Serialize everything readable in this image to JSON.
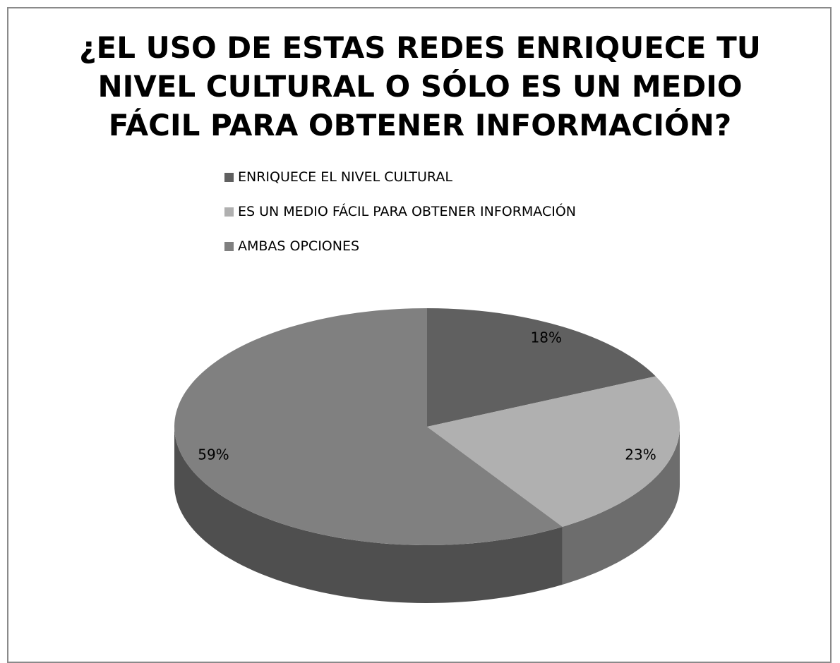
{
  "chart_data": {
    "type": "pie",
    "title": "¿EL USO DE ESTAS REDES ENRIQUECE TU NIVEL CULTURAL O SÓLO ES UN MEDIO FÁCIL PARA OBTENER INFORMACIÓN?",
    "categories": [
      "ENRIQUECE EL NIVEL CULTURAL",
      "ES UN MEDIO FÁCIL PARA OBTENER INFORMACIÓN",
      "AMBAS OPCIONES"
    ],
    "values": [
      18,
      23,
      59
    ],
    "value_labels": [
      "18%",
      "23%",
      "59%"
    ],
    "colors": [
      "#606060",
      "#b0b0b0",
      "#808080"
    ]
  }
}
